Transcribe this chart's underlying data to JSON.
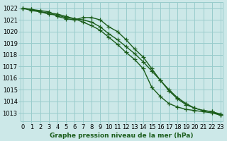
{
  "xlabel": "Graphe pression niveau de la mer (hPa)",
  "x_ticks": [
    0,
    1,
    2,
    3,
    4,
    5,
    6,
    7,
    8,
    9,
    10,
    11,
    12,
    13,
    14,
    15,
    16,
    17,
    18,
    19,
    20,
    21,
    22,
    23
  ],
  "ylim": [
    1012.3,
    1022.5
  ],
  "xlim": [
    -0.3,
    23.3
  ],
  "yticks": [
    1013,
    1014,
    1015,
    1016,
    1017,
    1018,
    1019,
    1020,
    1021,
    1022
  ],
  "background_color": "#cce8e8",
  "grid_color": "#99cccc",
  "line_color": "#1a5c1a",
  "line1": [
    1022.0,
    1021.8,
    1021.7,
    1021.5,
    1021.4,
    1021.2,
    1021.1,
    1021.0,
    1020.8,
    1020.4,
    1019.8,
    1019.3,
    1018.7,
    1018.1,
    1017.4,
    1016.6,
    1015.8,
    1015.0,
    1014.3,
    1013.8,
    1013.4,
    1013.2,
    1013.1,
    1012.8
  ],
  "line2": [
    1022.0,
    1021.9,
    1021.8,
    1021.7,
    1021.3,
    1021.1,
    1021.0,
    1021.2,
    1021.2,
    1021.0,
    1020.4,
    1020.0,
    1019.3,
    1018.5,
    1017.8,
    1016.8,
    1015.8,
    1014.9,
    1014.2,
    1013.7,
    1013.4,
    1013.2,
    1013.1,
    1012.9
  ],
  "line3": [
    1022.0,
    1021.9,
    1021.7,
    1021.6,
    1021.5,
    1021.3,
    1021.1,
    1020.8,
    1020.5,
    1020.1,
    1019.5,
    1018.9,
    1018.2,
    1017.6,
    1016.8,
    1015.2,
    1014.4,
    1013.8,
    1013.5,
    1013.3,
    1013.2,
    1013.1,
    1013.0,
    1012.8
  ],
  "marker": "+",
  "markersize": 4,
  "linewidth": 1.0,
  "tick_fontsize": 6.0
}
